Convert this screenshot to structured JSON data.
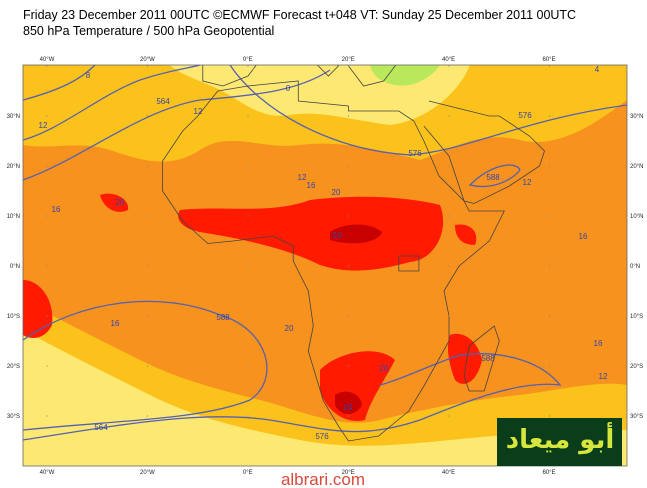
{
  "header": {
    "title_line1": "Friday 23 December 2011 00UTC ©ECMWF Forecast t+048 VT: Sunday 25 December 2011 00UTC",
    "title_line2": "850 hPa Temperature / 500 hPa Geopotential"
  },
  "map": {
    "lon_labels": [
      "40°W",
      "20°W",
      "0°E",
      "20°E",
      "40°E",
      "60°E"
    ],
    "lat_labels": [
      "30°N",
      "20°N",
      "10°N",
      "0°N",
      "10°S",
      "20°S",
      "30°S"
    ],
    "contour_labels": [
      "20",
      "24",
      "24",
      "20",
      "16",
      "12",
      "20",
      "20",
      "16",
      "16",
      "12",
      "16",
      "12",
      "16",
      "12",
      "588",
      "576",
      "564",
      "576",
      "588",
      "588",
      "564",
      "576",
      "8",
      "0",
      "12",
      "4"
    ]
  },
  "watermark": {
    "arabic": "أبو ميعاد",
    "site": "albrari.com"
  }
}
